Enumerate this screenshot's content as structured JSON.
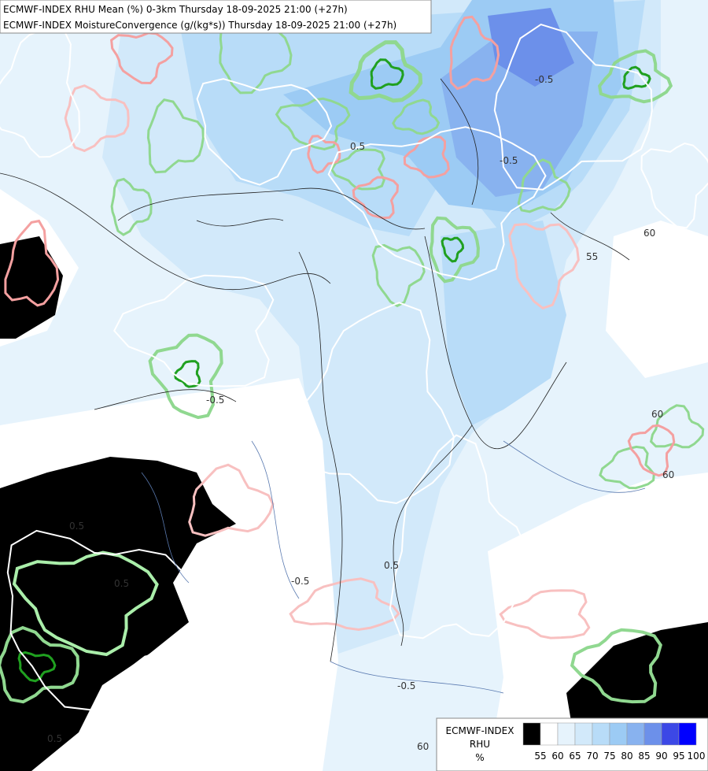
{
  "header": {
    "lines": [
      "ECMWF-INDEX RHU Mean (%) 0-3km Thursday 18-09-2025 21:00 (+27h)",
      "ECMWF-INDEX MoistureConvergence (g/(kg*s)) Thursday 18-09-2025 21:00 (+27h)"
    ]
  },
  "map": {
    "contour_labels": [
      "-0.5",
      "0.5",
      "60",
      "55",
      "60",
      "60",
      "60",
      "0.5",
      "-0.5",
      "0.5",
      "-0.5",
      "-0.5",
      "0.5",
      "-0.5",
      "0.5"
    ]
  },
  "legend": {
    "title": [
      "ECMWF-INDEX",
      "RHU",
      "%"
    ],
    "colors": [
      "#000000",
      "#ffffff",
      "#e6f3fc",
      "#d2e9fa",
      "#b8dcf8",
      "#9ccbf4",
      "#88b2ef",
      "#6c90ea",
      "#3c48e6",
      "#0000ff"
    ],
    "ticks": [
      55,
      60,
      65,
      70,
      75,
      80,
      85,
      90,
      95,
      100
    ]
  }
}
